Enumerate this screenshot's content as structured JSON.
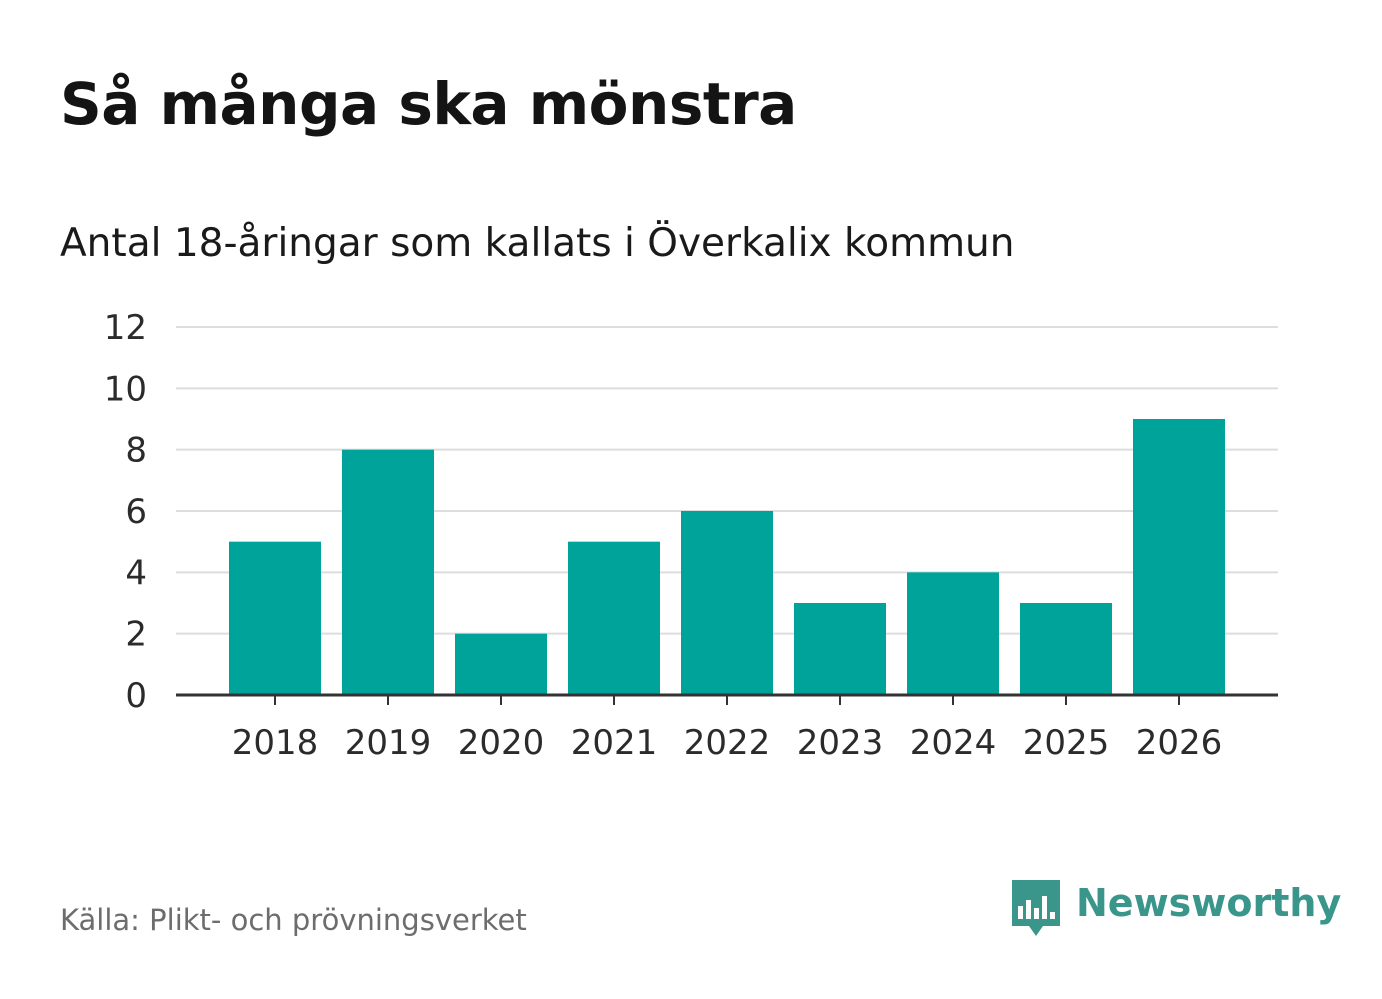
{
  "colors": {
    "bar": "#00a39a",
    "grid": "#dddddd",
    "axis": "#333333",
    "brand": "#3a968b"
  },
  "chart_data": {
    "type": "bar",
    "title": "Så många ska mönstra",
    "subtitle": "Antal 18-åringar som kallats i Överkalix kommun",
    "categories": [
      "2018",
      "2019",
      "2020",
      "2021",
      "2022",
      "2023",
      "2024",
      "2025",
      "2026"
    ],
    "values": [
      5,
      8,
      2,
      5,
      6,
      3,
      4,
      3,
      9
    ],
    "yticks": [
      "0",
      "2",
      "4",
      "6",
      "8",
      "10",
      "12"
    ],
    "ylim": [
      0,
      12
    ],
    "xlabel": "",
    "ylabel": "",
    "grid": true,
    "legend": "none"
  },
  "footer": {
    "source": "Källa: Plikt- och prövningsverket",
    "brand": "Newsworthy",
    "brand_logo_icon": "newsworthy-speech-bubble-bars-icon"
  }
}
